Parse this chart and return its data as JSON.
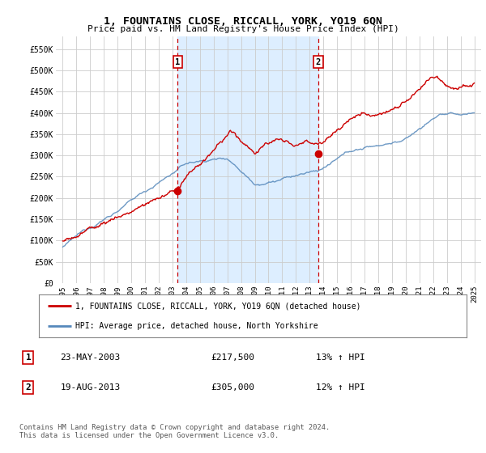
{
  "title": "1, FOUNTAINS CLOSE, RICCALL, YORK, YO19 6QN",
  "subtitle": "Price paid vs. HM Land Registry's House Price Index (HPI)",
  "legend_line1": "1, FOUNTAINS CLOSE, RICCALL, YORK, YO19 6QN (detached house)",
  "legend_line2": "HPI: Average price, detached house, North Yorkshire",
  "sale1_label": "1",
  "sale1_date": "23-MAY-2003",
  "sale1_price": "£217,500",
  "sale1_hpi": "13% ↑ HPI",
  "sale2_label": "2",
  "sale2_date": "19-AUG-2013",
  "sale2_price": "£305,000",
  "sale2_hpi": "12% ↑ HPI",
  "footer": "Contains HM Land Registry data © Crown copyright and database right 2024.\nThis data is licensed under the Open Government Licence v3.0.",
  "sale1_x": 2003.38,
  "sale1_y": 217500,
  "sale2_x": 2013.63,
  "sale2_y": 305000,
  "red_color": "#cc0000",
  "blue_color": "#5588bb",
  "shade_color": "#ddeeff",
  "vline_color": "#cc0000",
  "grid_color": "#cccccc",
  "background_color": "#ffffff",
  "plot_bg_color": "#ffffff",
  "ylim": [
    0,
    580000
  ],
  "xlim_start": 1994.5,
  "xlim_end": 2025.5,
  "ytick_values": [
    0,
    50000,
    100000,
    150000,
    200000,
    250000,
    300000,
    350000,
    400000,
    450000,
    500000,
    550000
  ],
  "ytick_labels": [
    "£0",
    "£50K",
    "£100K",
    "£150K",
    "£200K",
    "£250K",
    "£300K",
    "£350K",
    "£400K",
    "£450K",
    "£500K",
    "£550K"
  ],
  "xtick_values": [
    1995,
    1996,
    1997,
    1998,
    1999,
    2000,
    2001,
    2002,
    2003,
    2004,
    2005,
    2006,
    2007,
    2008,
    2009,
    2010,
    2011,
    2012,
    2013,
    2014,
    2015,
    2016,
    2017,
    2018,
    2019,
    2020,
    2021,
    2022,
    2023,
    2024,
    2025
  ]
}
